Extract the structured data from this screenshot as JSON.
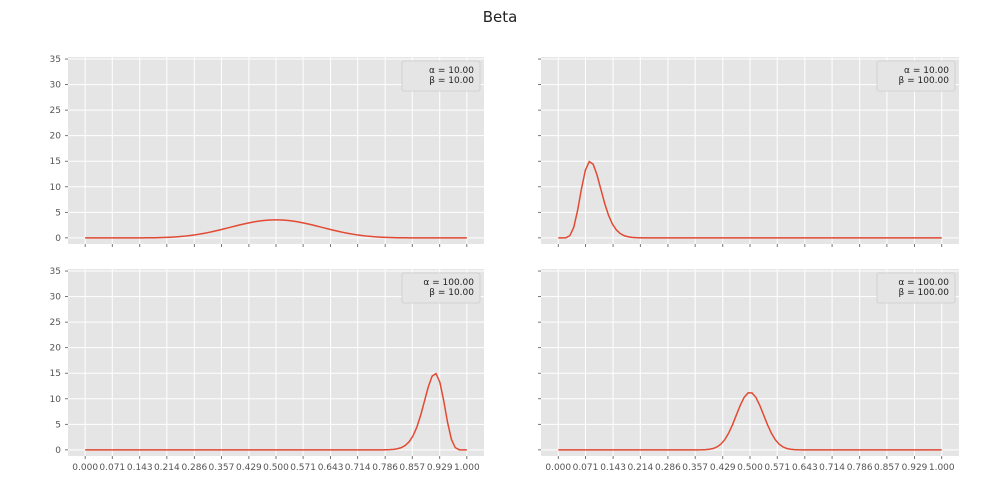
{
  "suptitle": "Beta",
  "chart_data": {
    "type": "line",
    "title": "Beta",
    "x_ticks": [
      "0.000",
      "0.071",
      "0.143",
      "0.214",
      "0.286",
      "0.357",
      "0.429",
      "0.500",
      "0.571",
      "0.643",
      "0.714",
      "0.786",
      "0.857",
      "0.929",
      "1.000"
    ],
    "y_ticks": [
      "0",
      "5",
      "10",
      "15",
      "20",
      "25",
      "30",
      "35"
    ],
    "xlim": [
      0,
      1
    ],
    "ylim": [
      0,
      35
    ],
    "grid": true,
    "line_color": "#E24A33",
    "panel_bg": "#E5E5E5",
    "legend_placement": "top-right",
    "panels": [
      {
        "alpha": 10,
        "beta": 10,
        "legend": [
          "α = 10.00",
          "β = 10.00"
        ],
        "show_x_ticklabels": false
      },
      {
        "alpha": 10,
        "beta": 100,
        "legend": [
          "α = 10.00",
          "β = 100.00"
        ],
        "show_x_ticklabels": false
      },
      {
        "alpha": 100,
        "beta": 10,
        "legend": [
          "α = 100.00",
          "β = 10.00"
        ],
        "show_x_ticklabels": true
      },
      {
        "alpha": 100,
        "beta": 100,
        "legend": [
          "α = 100.00",
          "β = 100.00"
        ],
        "show_x_ticklabels": true
      }
    ],
    "samples_per_curve": 100
  }
}
